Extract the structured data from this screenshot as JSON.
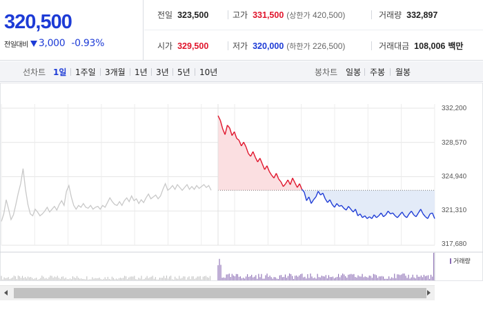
{
  "quote": {
    "current_price": "320,500",
    "change_label": "전일대비",
    "change_value": "3,000",
    "change_direction": "down",
    "change_percent": "-0.93%"
  },
  "stats": {
    "prev_close": {
      "label": "전일",
      "value": "323,500"
    },
    "high": {
      "label": "고가",
      "value": "331,500",
      "limit_label": "상한가",
      "limit_value": "420,500"
    },
    "volume": {
      "label": "거래량",
      "value": "332,897"
    },
    "open": {
      "label": "시가",
      "value": "329,500"
    },
    "low": {
      "label": "저가",
      "value": "320,000",
      "limit_label": "하한가",
      "limit_value": "226,500"
    },
    "trade_value": {
      "label": "거래대금",
      "value": "108,006",
      "unit": "백만"
    }
  },
  "toolbar": {
    "line_chart_label": "선차트",
    "periods": [
      "1일",
      "1주일",
      "3개월",
      "1년",
      "3년",
      "5년",
      "10년"
    ],
    "active_period": "1일",
    "candle_chart_label": "봉차트",
    "candle_periods": [
      "일봉",
      "주봉",
      "월봉"
    ]
  },
  "chart_data": {
    "type": "line",
    "y_ticks": [
      "332,200",
      "328,570",
      "324,940",
      "321,310",
      "317,680"
    ],
    "ylim": [
      317680,
      332200
    ],
    "reference_price": 323500,
    "previous_session_series": [
      320200,
      321000,
      322500,
      321500,
      320400,
      320900,
      322000,
      323200,
      324200,
      325800,
      323600,
      322000,
      321000,
      320800,
      321500,
      321200,
      320800,
      321000,
      321300,
      321700,
      321200,
      321500,
      321800,
      321400,
      322000,
      322400,
      321900,
      323400,
      324000,
      322800,
      321900,
      321500,
      321900,
      321700,
      322100,
      321700,
      321600,
      321900,
      321500,
      321700,
      321800,
      321500,
      321900,
      321700,
      322200,
      322700,
      322300,
      322000,
      321900,
      322300,
      321900,
      322400,
      322700,
      322300,
      322900,
      322400,
      322600,
      322100,
      322500,
      322200,
      322700,
      323100,
      322600,
      322800,
      323000,
      322600,
      322900,
      323600,
      324200,
      323500,
      323700,
      324000,
      323600,
      324100,
      323800,
      323500,
      323800,
      324100,
      323600,
      323900,
      323600,
      324000,
      323700,
      323900,
      324100,
      323800,
      324000,
      323500
    ],
    "today_series": [
      331400,
      330900,
      330000,
      329400,
      330400,
      330100,
      329300,
      329700,
      329000,
      328800,
      328200,
      328600,
      328100,
      327400,
      327100,
      327600,
      327000,
      326500,
      326900,
      326300,
      325700,
      326100,
      325500,
      325100,
      324800,
      325300,
      324700,
      324400,
      323900,
      324200,
      324600,
      324100,
      324800,
      324300,
      323800,
      324200,
      323600,
      323300,
      322400,
      322800,
      322100,
      322500,
      322800,
      323400,
      323000,
      323200,
      322600,
      322200,
      322500,
      322000,
      321700,
      322100,
      321800,
      321900,
      321600,
      321400,
      321800,
      321500,
      321200,
      321500,
      320800,
      321000,
      320600,
      320800,
      320500,
      320700,
      320500,
      320900,
      320600,
      320800,
      321100,
      320700,
      320900,
      321300,
      321000,
      321100,
      320800,
      320600,
      320900,
      321200,
      320800,
      320600,
      321000,
      321300,
      320900,
      320700,
      321100,
      321500,
      321000,
      320700,
      320500,
      321000,
      321100,
      320500
    ],
    "volume_label": "거래량"
  },
  "colors": {
    "price_down": "#1d3bd6",
    "price_up": "#e0142b",
    "previous_line": "#c8c8c8",
    "up_fill": "#fbdfe1",
    "down_fill": "#e3ebf8",
    "volume_bar": "#8a6bb3"
  }
}
